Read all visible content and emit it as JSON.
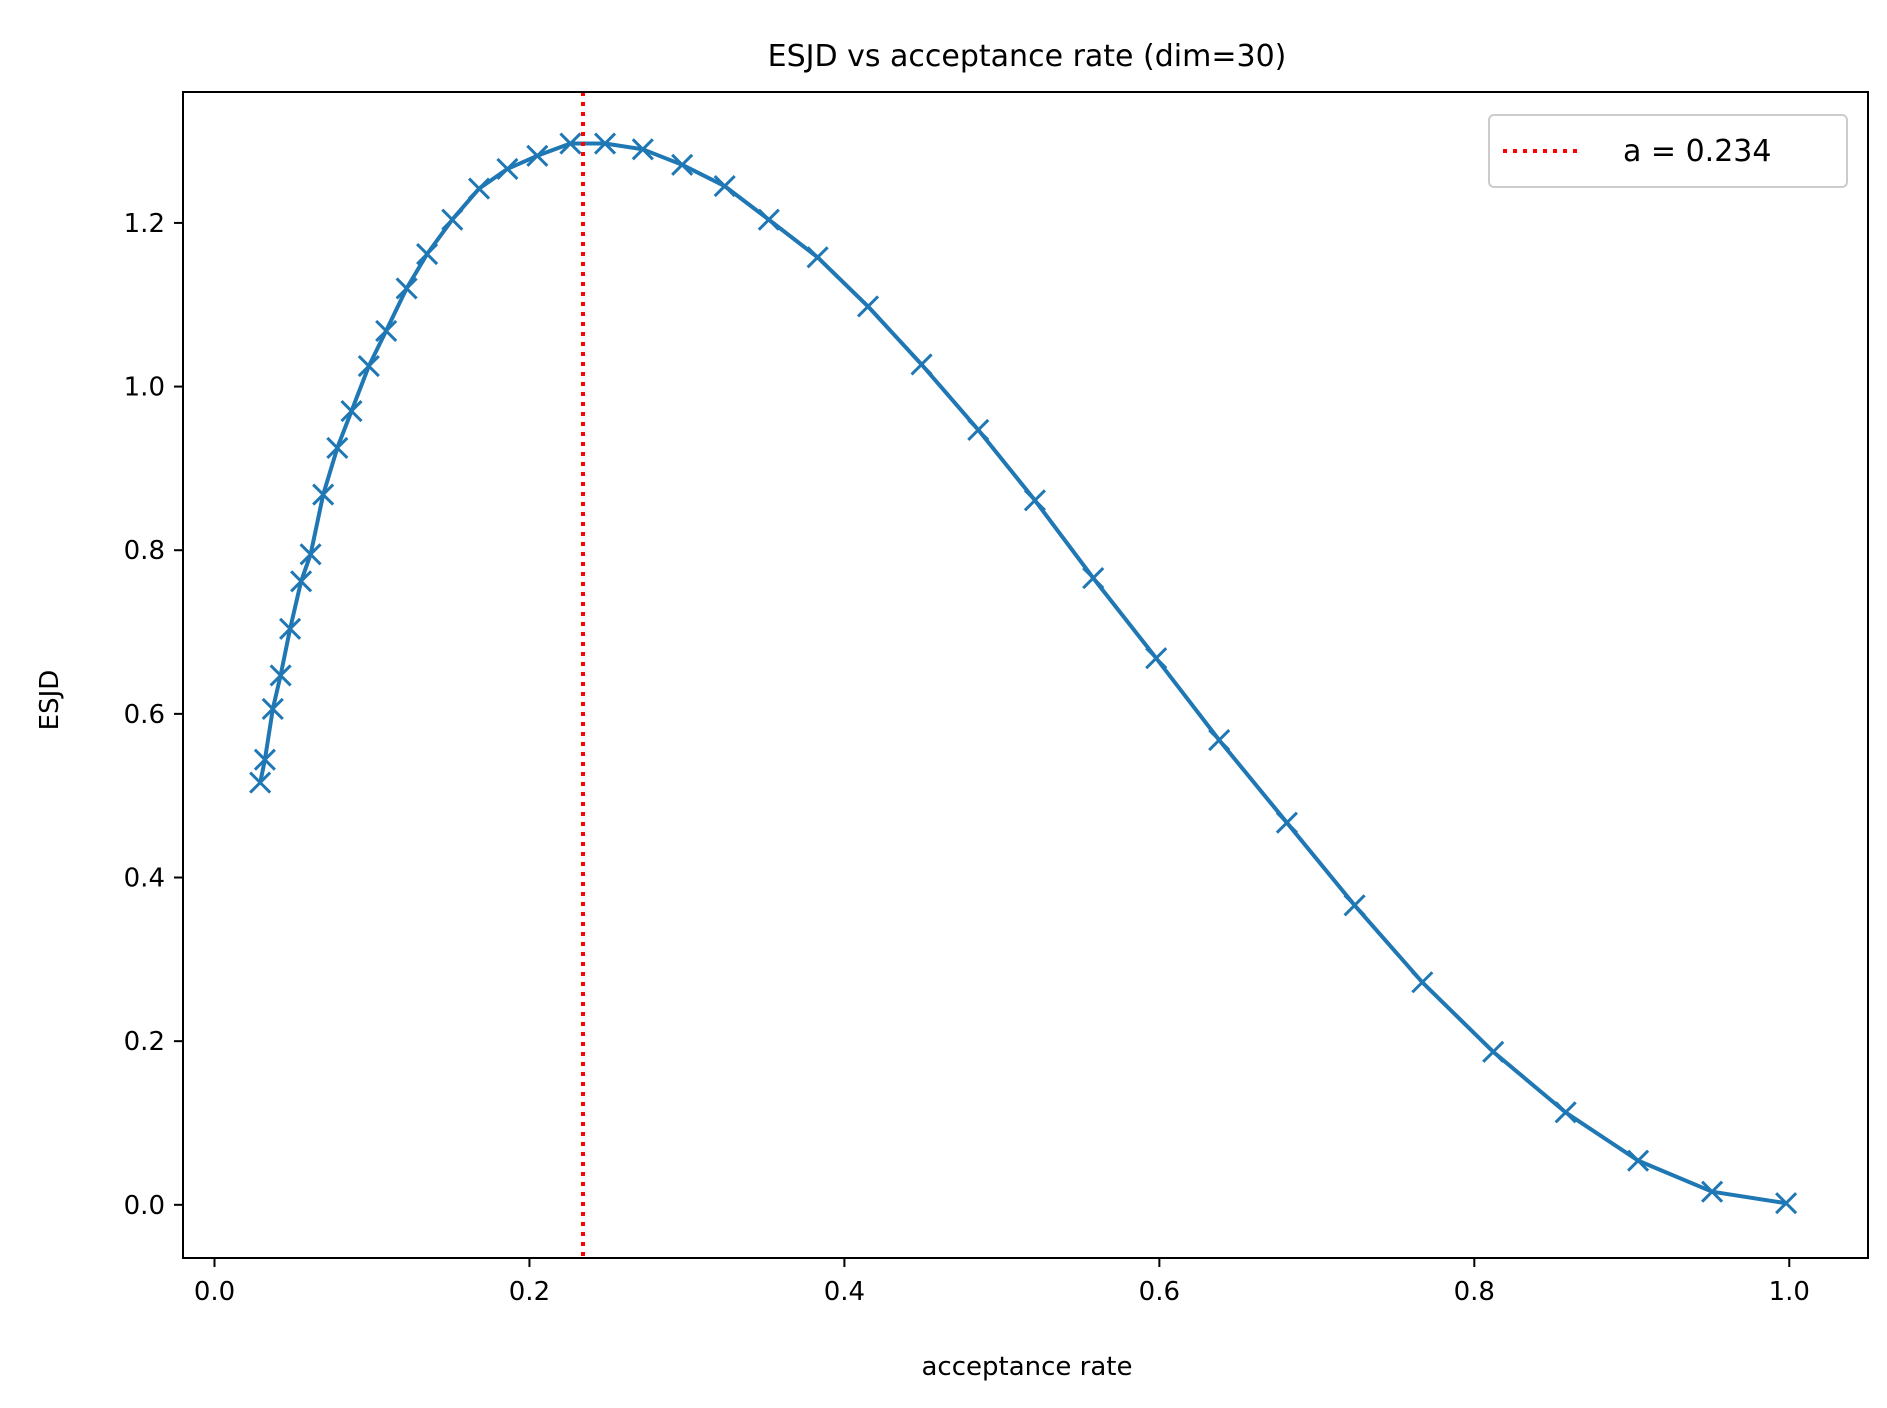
{
  "chart_data": {
    "type": "line",
    "title": "ESJD vs acceptance rate (dim=30)",
    "xlabel": "acceptance rate",
    "ylabel": "ESJD",
    "xlim": [
      -0.02,
      1.05
    ],
    "ylim": [
      -0.065,
      1.36
    ],
    "xticks": [
      0.0,
      0.2,
      0.4,
      0.6,
      0.8,
      1.0
    ],
    "xtick_labels": [
      "0.0",
      "0.2",
      "0.4",
      "0.6",
      "0.8",
      "1.0"
    ],
    "yticks": [
      0.0,
      0.2,
      0.4,
      0.6,
      0.8,
      1.0,
      1.2
    ],
    "ytick_labels": [
      "0.0",
      "0.2",
      "0.4",
      "0.6",
      "0.8",
      "1.0",
      "1.2"
    ],
    "grid": false,
    "legend": {
      "placement": "top-right",
      "entries": [
        "a = 0.234"
      ]
    },
    "series": [
      {
        "color": "#1f77b4",
        "marker": "x",
        "x": [
          0.029,
          0.032,
          0.037,
          0.042,
          0.048,
          0.055,
          0.061,
          0.069,
          0.078,
          0.087,
          0.098,
          0.109,
          0.122,
          0.135,
          0.151,
          0.168,
          0.186,
          0.205,
          0.226,
          0.248,
          0.272,
          0.297,
          0.324,
          0.352,
          0.383,
          0.415,
          0.449,
          0.485,
          0.521,
          0.558,
          0.598,
          0.638,
          0.681,
          0.724,
          0.767,
          0.812,
          0.858,
          0.904,
          0.951,
          0.998
        ],
        "y": [
          0.516,
          0.544,
          0.606,
          0.647,
          0.704,
          0.762,
          0.795,
          0.868,
          0.925,
          0.97,
          1.025,
          1.068,
          1.12,
          1.162,
          1.204,
          1.242,
          1.266,
          1.282,
          1.297,
          1.297,
          1.29,
          1.271,
          1.245,
          1.204,
          1.158,
          1.098,
          1.027,
          0.947,
          0.861,
          0.766,
          0.668,
          0.568,
          0.467,
          0.366,
          0.272,
          0.187,
          0.113,
          0.054,
          0.016,
          0.002
        ]
      }
    ],
    "reference_line": {
      "orientation": "vertical",
      "x": 0.234,
      "color": "#ff0000",
      "style": "dotted",
      "label": "a = 0.234"
    }
  }
}
